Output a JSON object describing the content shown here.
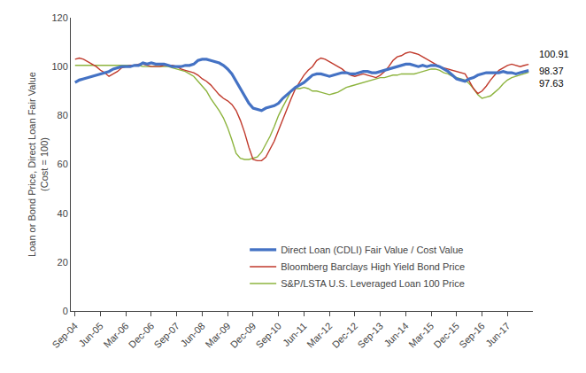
{
  "chart_data": {
    "type": "line",
    "ylabel": "Loan or Bond Price, Direct Loan Fair Value\n(Cost = 100)",
    "ylim": [
      0,
      120
    ],
    "yticks": [
      0,
      20,
      40,
      60,
      80,
      100,
      120
    ],
    "grid": false,
    "legend": "bottom",
    "categories": [
      "Sep-04",
      null,
      null,
      null,
      null,
      null,
      "Jun-05",
      null,
      null,
      null,
      null,
      null,
      "Mar-06",
      null,
      null,
      null,
      null,
      null,
      "Dec-06",
      null,
      null,
      null,
      null,
      null,
      "Sep-07",
      null,
      null,
      null,
      null,
      null,
      "Jun-08",
      null,
      null,
      null,
      null,
      null,
      "Mar-09",
      null,
      null,
      null,
      null,
      null,
      "Dec-09",
      null,
      null,
      null,
      null,
      null,
      "Sep-10",
      null,
      null,
      null,
      null,
      null,
      "Jun-11",
      null,
      null,
      null,
      null,
      null,
      "Mar-12",
      null,
      null,
      null,
      null,
      null,
      "Dec-12",
      null,
      null,
      null,
      null,
      null,
      "Sep-13",
      null,
      null,
      null,
      null,
      null,
      "Jun-14",
      null,
      null,
      null,
      null,
      null,
      "Mar-15",
      null,
      null,
      null,
      null,
      null,
      "Dec-15",
      null,
      null,
      null,
      null,
      null,
      "Sep-16",
      null,
      null,
      null,
      null,
      null,
      "Jun-17",
      null,
      null,
      null,
      null,
      null
    ],
    "series": [
      {
        "name": "Direct Loan (CDLI) Fair Value / Cost Value",
        "color": "#4472C4",
        "values": [
          93.5,
          94.5,
          95.0,
          95.5,
          96.0,
          96.5,
          97.0,
          97.5,
          98.0,
          99.0,
          99.5,
          100.0,
          100.0,
          100.0,
          100.5,
          100.5,
          101.5,
          101.0,
          101.5,
          101.0,
          101.0,
          101.0,
          100.5,
          100.0,
          100.0,
          100.0,
          100.5,
          100.5,
          101.0,
          102.5,
          103.0,
          103.0,
          102.5,
          102.0,
          101.5,
          100.5,
          99.0,
          97.0,
          94.0,
          91.0,
          88.0,
          85.0,
          83.0,
          82.5,
          82.0,
          83.0,
          83.5,
          84.0,
          85.0,
          87.0,
          88.5,
          90.0,
          91.5,
          92.5,
          93.5,
          95.0,
          96.5,
          97.0,
          97.0,
          96.5,
          96.0,
          96.5,
          97.0,
          97.5,
          97.5,
          97.0,
          97.0,
          97.5,
          98.0,
          98.0,
          97.5,
          97.5,
          98.0,
          98.5,
          99.0,
          99.5,
          100.0,
          100.5,
          101.0,
          101.0,
          100.5,
          100.0,
          100.5,
          100.0,
          100.5,
          100.5,
          100.0,
          99.0,
          98.0,
          96.5,
          95.0,
          94.5,
          94.0,
          95.0,
          95.5,
          96.5,
          97.0,
          97.5,
          97.5,
          97.5,
          97.5,
          98.0,
          97.5,
          97.5,
          97.0,
          97.5,
          98.0,
          98.37
        ]
      },
      {
        "name": "Bloomberg Barclays High Yield Bond Price",
        "color": "#C0392B",
        "values": [
          103.0,
          103.5,
          103.0,
          102.0,
          101.0,
          100.0,
          98.5,
          97.5,
          96.0,
          97.0,
          98.0,
          99.5,
          100.0,
          100.5,
          100.5,
          101.0,
          101.0,
          100.5,
          100.0,
          100.0,
          100.0,
          100.5,
          100.5,
          100.5,
          100.0,
          99.0,
          98.5,
          98.0,
          97.5,
          96.5,
          95.0,
          94.0,
          92.5,
          90.5,
          88.5,
          87.0,
          86.0,
          84.5,
          82.0,
          78.0,
          73.0,
          67.0,
          62.0,
          61.5,
          61.5,
          63.0,
          66.0,
          69.5,
          74.0,
          78.5,
          83.0,
          87.0,
          91.0,
          94.0,
          96.5,
          98.5,
          100.0,
          102.5,
          103.5,
          103.0,
          102.0,
          101.0,
          100.0,
          99.0,
          97.5,
          96.5,
          96.0,
          96.5,
          97.0,
          96.5,
          96.0,
          95.5,
          96.5,
          98.0,
          100.0,
          102.5,
          104.0,
          104.5,
          105.5,
          106.0,
          105.5,
          105.0,
          104.0,
          103.0,
          102.0,
          101.0,
          100.0,
          99.5,
          99.0,
          98.5,
          98.0,
          97.5,
          97.0,
          94.0,
          91.0,
          89.0,
          90.0,
          92.0,
          94.5,
          96.5,
          98.5,
          99.5,
          100.5,
          101.0,
          100.5,
          100.0,
          100.5,
          100.91
        ]
      },
      {
        "name": "S&P/LSTA U.S. Leveraged Loan 100 Price",
        "color": "#8DB43E",
        "values": [
          100.5,
          100.5,
          100.5,
          100.5,
          100.5,
          100.5,
          100.5,
          100.5,
          100.5,
          100.5,
          100.5,
          100.5,
          100.5,
          100.5,
          100.5,
          100.5,
          100.0,
          100.0,
          100.0,
          100.0,
          100.0,
          100.0,
          100.0,
          99.5,
          99.0,
          98.5,
          98.0,
          97.0,
          96.0,
          94.0,
          92.0,
          90.0,
          87.0,
          84.5,
          82.0,
          79.0,
          75.0,
          70.0,
          64.5,
          62.5,
          62.0,
          62.0,
          62.5,
          63.0,
          65.0,
          68.0,
          71.5,
          75.5,
          80.0,
          83.5,
          87.0,
          90.0,
          91.0,
          91.0,
          91.5,
          91.0,
          90.0,
          90.0,
          89.5,
          89.0,
          88.5,
          89.0,
          89.5,
          90.5,
          91.5,
          92.0,
          92.5,
          93.0,
          93.5,
          94.0,
          94.5,
          95.0,
          95.5,
          95.5,
          96.0,
          96.5,
          96.5,
          97.0,
          97.0,
          97.0,
          97.0,
          97.5,
          98.0,
          98.5,
          99.0,
          99.0,
          98.5,
          97.5,
          97.0,
          96.0,
          95.5,
          95.0,
          94.5,
          93.0,
          91.0,
          88.5,
          87.0,
          87.5,
          88.0,
          89.5,
          91.0,
          93.0,
          94.5,
          95.5,
          96.0,
          96.5,
          97.0,
          97.63
        ]
      }
    ],
    "annotations": [
      {
        "text": "100.91",
        "y": 100.91
      },
      {
        "text": "98.37",
        "y": 98.37
      },
      {
        "text": "97.63",
        "y": 97.63
      }
    ]
  }
}
